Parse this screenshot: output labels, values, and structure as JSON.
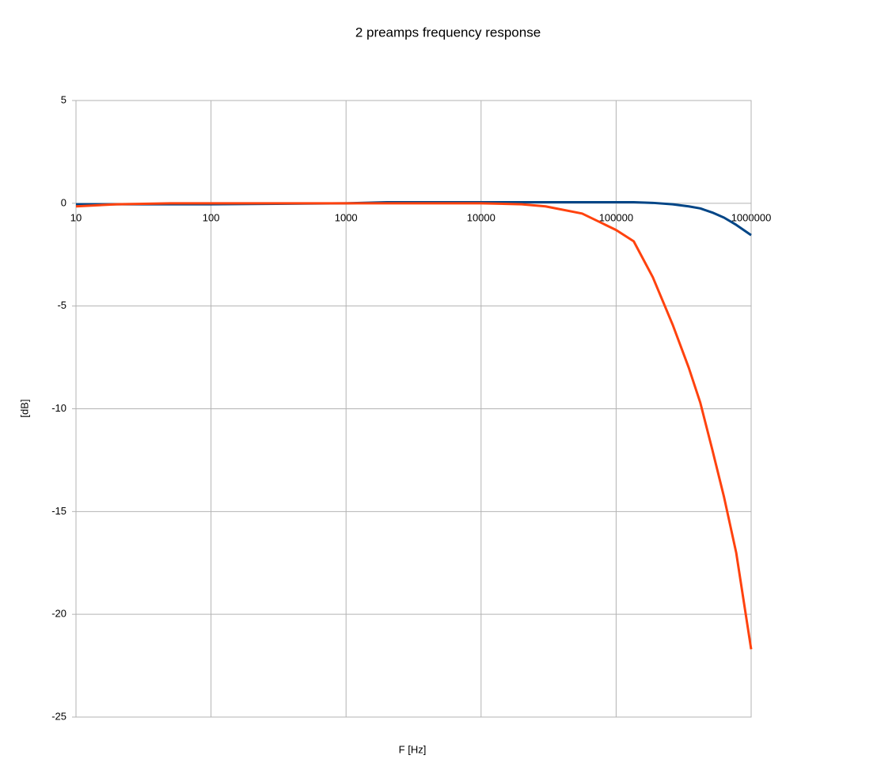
{
  "chart_data": {
    "type": "line",
    "title": "2 preamps frequency response",
    "x_label": "F [Hz]",
    "y_label": "[dB]",
    "x": [
      10,
      20,
      50,
      100,
      1000,
      2000,
      10000,
      20000,
      30000,
      56000,
      100000,
      135000,
      187000,
      262000,
      345000,
      420000,
      516000,
      630000,
      775000,
      1000000
    ],
    "series": [
      {
        "color": "#004586",
        "values": [
          -0.05,
          -0.05,
          -0.05,
          -0.05,
          0,
          0.05,
          0.05,
          0.05,
          0.05,
          0.05,
          0.05,
          0.05,
          0.02,
          -0.05,
          -0.15,
          -0.25,
          -0.45,
          -0.7,
          -1.05,
          -1.55
        ]
      },
      {
        "color": "#ff420e",
        "values": [
          -0.15,
          -0.05,
          0,
          0,
          0,
          0,
          0,
          -0.05,
          -0.15,
          -0.5,
          -1.3,
          -1.85,
          -3.6,
          -5.9,
          -8.0,
          -9.7,
          -12.0,
          -14.3,
          -17.0,
          -21.7
        ]
      }
    ],
    "xscale": "log",
    "xlim": [
      10,
      1000000
    ],
    "xticks": [
      10,
      100,
      1000,
      10000,
      100000,
      1000000
    ],
    "ylim": [
      -25,
      5
    ],
    "yticks": [
      -25,
      -20,
      -15,
      -10,
      -5,
      0,
      5
    ],
    "grid": true
  }
}
